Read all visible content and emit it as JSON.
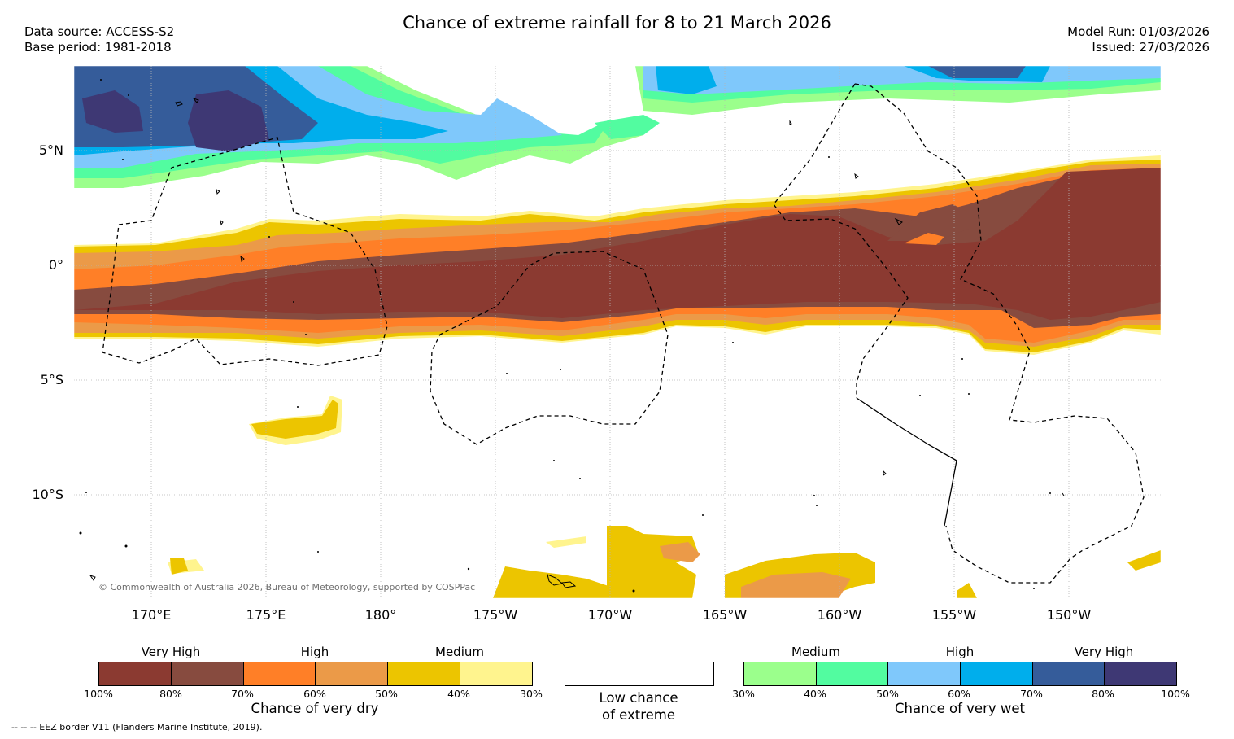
{
  "title": "Chance of extreme rainfall for 8 to 21 March 2026",
  "data_source": "Data source: ACCESS-S2",
  "base_period": "Base period: 1981-2018",
  "model_run": "Model Run: 01/03/2026",
  "issued": "Issued: 27/03/2026",
  "map": {
    "latitude_labels": [
      "5°N",
      "0°",
      "5°S",
      "10°S"
    ],
    "longitude_labels": [
      "170°E",
      "175°E",
      "180°",
      "175°W",
      "170°W",
      "165°W",
      "160°W",
      "155°W",
      "150°W"
    ],
    "copyright": "© Commonwealth of Australia 2026, Bureau of Meteorology, supported by COSPPac"
  },
  "legend": {
    "dry": {
      "levels": [
        "Very High",
        "High",
        "Medium"
      ],
      "colors": [
        "#8b3a31",
        "#874b3f",
        "#ff7f27",
        "#eb9a48",
        "#ecc500",
        "#fff48e"
      ],
      "ticks": [
        "100%",
        "80%",
        "70%",
        "60%",
        "50%",
        "40%",
        "30%"
      ],
      "caption": "Chance of very dry"
    },
    "neutral": {
      "caption_line1": "Low chance",
      "caption_line2": "of extreme"
    },
    "wet": {
      "levels": [
        "Medium",
        "High",
        "Very High"
      ],
      "colors": [
        "#9bff8c",
        "#52fca0",
        "#7fc8fb",
        "#00aeec",
        "#355c9a",
        "#3e3874"
      ],
      "ticks": [
        "30%",
        "40%",
        "50%",
        "60%",
        "70%",
        "80%",
        "100%"
      ],
      "caption": "Chance of very wet"
    }
  },
  "footnote": "-- -- -- EEZ border V11 (Flanders Marine Institute, 2019)."
}
